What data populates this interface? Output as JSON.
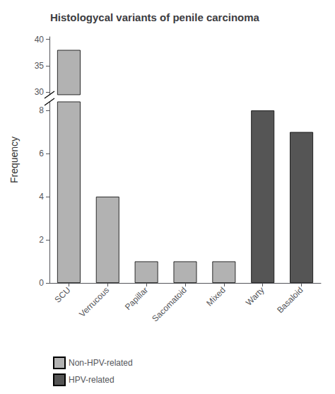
{
  "chart_data": {
    "type": "bar",
    "title": "Histologycal variants of penile carcinoma",
    "ylabel": "Frequency",
    "categories": [
      "SCU",
      "Verrucous",
      "Papillar",
      "Sacomatoid",
      "Mixed",
      "Warty",
      "Basaloid"
    ],
    "series": [
      {
        "name": "Non-HPV-related",
        "color": "#b2b2b2",
        "values": [
          38,
          4,
          1,
          1,
          1,
          null,
          null
        ]
      },
      {
        "name": "HPV-related",
        "color": "#555555",
        "values": [
          null,
          null,
          null,
          null,
          null,
          8,
          7
        ]
      }
    ],
    "ylim": [
      [
        0,
        8.4
      ],
      [
        29.5,
        40.5
      ]
    ],
    "yticks": [
      0,
      2,
      4,
      6,
      8,
      30,
      35,
      40
    ],
    "grid": false,
    "legend": "lower left"
  }
}
